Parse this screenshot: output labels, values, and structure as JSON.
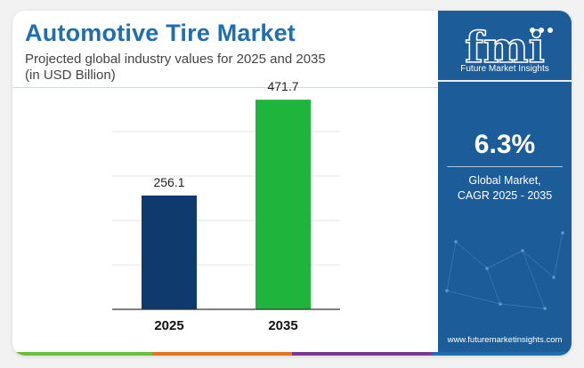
{
  "header": {
    "title": "Automotive Tire Market",
    "subtitle_line1": "Projected global industry values for 2025 and 2035",
    "subtitle_line2": "(in USD Billion)"
  },
  "chart_data": {
    "type": "bar",
    "categories": [
      "2025",
      "2035"
    ],
    "series": [
      {
        "values": [
          256.1,
          471.7
        ]
      }
    ],
    "data_labels": [
      "256.1",
      "471.7"
    ],
    "bar_colors": [
      "#0e3a6e",
      "#1fb43c"
    ],
    "ylim": [
      0,
      500
    ],
    "grid": true,
    "xlabel": "",
    "ylabel": ""
  },
  "sidebar": {
    "logo_text": "fmi",
    "brand_name": "Future Market Insights",
    "cagr_value": "6.3%",
    "cagr_label_line1": "Global Market,",
    "cagr_label_line2": "CAGR 2025 - 2035",
    "website": "www.futuremarketinsights.com",
    "background_color": "#1c5d99"
  },
  "footer": {
    "colors": [
      "#6cbf3c",
      "#e3751f",
      "#7b3a8e",
      "#1f6fb0"
    ]
  }
}
